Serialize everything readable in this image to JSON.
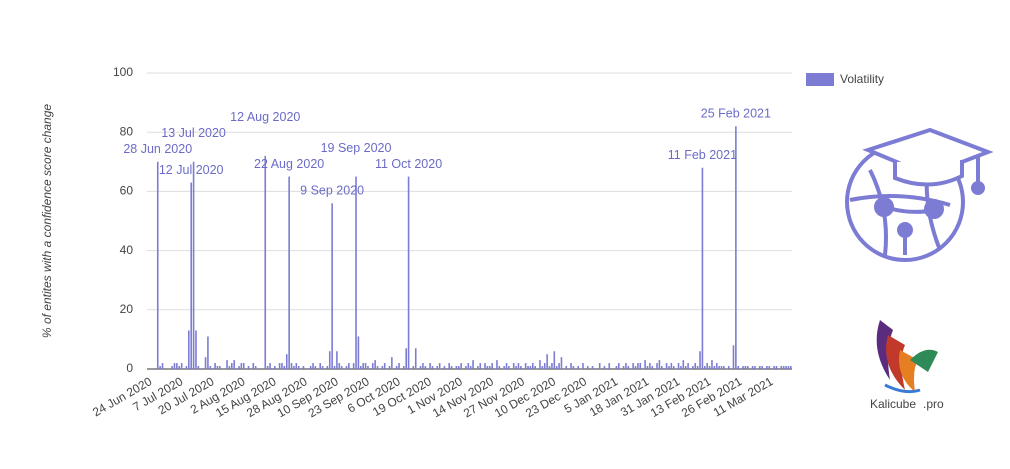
{
  "chart_data": {
    "type": "bar",
    "y_label": "% of entites with a confidence score change",
    "legend": "Volatility",
    "legend_position": "top-right",
    "color": "#7c7cd4",
    "grid": true,
    "ylim": [
      0,
      100
    ],
    "yticks": [
      0,
      20,
      40,
      60,
      80,
      100
    ],
    "categories": [
      "24 Jun 2020",
      null,
      null,
      null,
      null,
      null,
      null,
      null,
      null,
      null,
      null,
      null,
      null,
      "7 Jul 2020",
      null,
      null,
      null,
      null,
      null,
      null,
      null,
      null,
      null,
      null,
      null,
      null,
      "20 Jul 2020",
      null,
      null,
      null,
      null,
      null,
      null,
      null,
      null,
      null,
      null,
      null,
      null,
      "2 Aug 2020",
      null,
      null,
      null,
      null,
      null,
      null,
      null,
      null,
      null,
      null,
      null,
      null,
      "15 Aug 2020",
      null,
      null,
      null,
      null,
      null,
      null,
      null,
      null,
      null,
      null,
      null,
      null,
      "28 Aug 2020",
      null,
      null,
      null,
      null,
      null,
      null,
      null,
      null,
      null,
      null,
      null,
      null,
      "10 Sep 2020",
      null,
      null,
      null,
      null,
      null,
      null,
      null,
      null,
      null,
      null,
      null,
      null,
      "23 Sep 2020",
      null,
      null,
      null,
      null,
      null,
      null,
      null,
      null,
      null,
      null,
      null,
      null,
      "6 Oct 2020",
      null,
      null,
      null,
      null,
      null,
      null,
      null,
      null,
      null,
      null,
      null,
      null,
      "19 Oct 2020",
      null,
      null,
      null,
      null,
      null,
      null,
      null,
      null,
      null,
      null,
      null,
      null,
      "1 Nov 2020",
      null,
      null,
      null,
      null,
      null,
      null,
      null,
      null,
      null,
      null,
      null,
      null,
      "14 Nov 2020",
      null,
      null,
      null,
      null,
      null,
      null,
      null,
      null,
      null,
      null,
      null,
      null,
      "27 Nov 2020",
      null,
      null,
      null,
      null,
      null,
      null,
      null,
      null,
      null,
      null,
      null,
      null,
      "10 Dec 2020",
      null,
      null,
      null,
      null,
      null,
      null,
      null,
      null,
      null,
      null,
      null,
      null,
      "23 Dec 2020",
      null,
      null,
      null,
      null,
      null,
      null,
      null,
      null,
      null,
      null,
      null,
      null,
      "5 Jan 2021",
      null,
      null,
      null,
      null,
      null,
      null,
      null,
      null,
      null,
      null,
      null,
      null,
      "18 Jan 2021",
      null,
      null,
      null,
      null,
      null,
      null,
      null,
      null,
      null,
      null,
      null,
      null,
      "31 Jan 2021",
      null,
      null,
      null,
      null,
      null,
      null,
      null,
      null,
      null,
      null,
      null,
      null,
      "13 Feb 2021",
      null,
      null,
      null,
      null,
      null,
      null,
      null,
      null,
      null,
      null,
      null,
      null,
      "26 Feb 2021",
      null,
      null,
      null,
      null,
      null,
      null,
      null,
      null,
      null,
      null,
      null,
      null,
      "11 Mar 2021",
      null,
      null,
      null,
      null,
      null,
      null,
      null,
      null,
      null
    ],
    "values": [
      0,
      0,
      0,
      0,
      70,
      1,
      2,
      0,
      0,
      0,
      1,
      2,
      2,
      1,
      2,
      0,
      1,
      13,
      63,
      70,
      13,
      1,
      0,
      0,
      4,
      11,
      1,
      0,
      2,
      1,
      1,
      0,
      0,
      3,
      1,
      2,
      3,
      0,
      1,
      2,
      2,
      0,
      1,
      0,
      2,
      1,
      0,
      0,
      0,
      72,
      1,
      2,
      0,
      1,
      0,
      2,
      2,
      1,
      5,
      65,
      2,
      1,
      2,
      1,
      0,
      1,
      0,
      0,
      1,
      2,
      1,
      0,
      2,
      1,
      0,
      1,
      6,
      56,
      1,
      6,
      2,
      1,
      0,
      1,
      2,
      0,
      2,
      65,
      11,
      1,
      2,
      2,
      1,
      0,
      2,
      3,
      1,
      0,
      1,
      2,
      0,
      1,
      4,
      0,
      1,
      2,
      0,
      1,
      7,
      65,
      0,
      1,
      7,
      0,
      1,
      2,
      1,
      0,
      2,
      1,
      0,
      1,
      2,
      0,
      1,
      0,
      2,
      1,
      0,
      1,
      1,
      2,
      0,
      1,
      2,
      1,
      3,
      0,
      1,
      2,
      0,
      2,
      1,
      1,
      2,
      0,
      3,
      1,
      0,
      1,
      2,
      1,
      0,
      2,
      1,
      2,
      1,
      0,
      2,
      1,
      1,
      2,
      1,
      0,
      3,
      1,
      2,
      5,
      1,
      2,
      6,
      1,
      2,
      4,
      0,
      1,
      0,
      2,
      1,
      0,
      1,
      0,
      2,
      0,
      1,
      0,
      1,
      0,
      0,
      2,
      0,
      1,
      0,
      2,
      0,
      0,
      1,
      2,
      0,
      1,
      2,
      1,
      0,
      2,
      1,
      2,
      2,
      0,
      3,
      1,
      2,
      1,
      0,
      2,
      3,
      1,
      0,
      2,
      1,
      2,
      1,
      0,
      2,
      1,
      3,
      1,
      2,
      0,
      1,
      2,
      1,
      6,
      68,
      1,
      2,
      1,
      3,
      1,
      2,
      1,
      1,
      1,
      0,
      1,
      0,
      8,
      82,
      1,
      0,
      1,
      1,
      1,
      0,
      1,
      1,
      0,
      1,
      1,
      0,
      1,
      1,
      0,
      1,
      1,
      0,
      1,
      1,
      1,
      1,
      1
    ],
    "annotations": [
      {
        "text": "28 Jun 2020",
        "index": 4
      },
      {
        "text": "13 Jul 2020",
        "index": 19
      },
      {
        "text": "12 Jul 2020",
        "index": 18
      },
      {
        "text": "12 Aug 2020",
        "index": 49
      },
      {
        "text": "22 Aug 2020",
        "index": 59
      },
      {
        "text": "19 Sep 2020",
        "index": 87
      },
      {
        "text": "9 Sep 2020",
        "index": 77
      },
      {
        "text": "11 Oct 2020",
        "index": 109
      },
      {
        "text": "11 Feb 2021",
        "index": 232
      },
      {
        "text": "25 Feb 2021",
        "index": 246
      }
    ]
  },
  "logo": {
    "name": "Kalicube",
    "suffix": ".pro"
  }
}
